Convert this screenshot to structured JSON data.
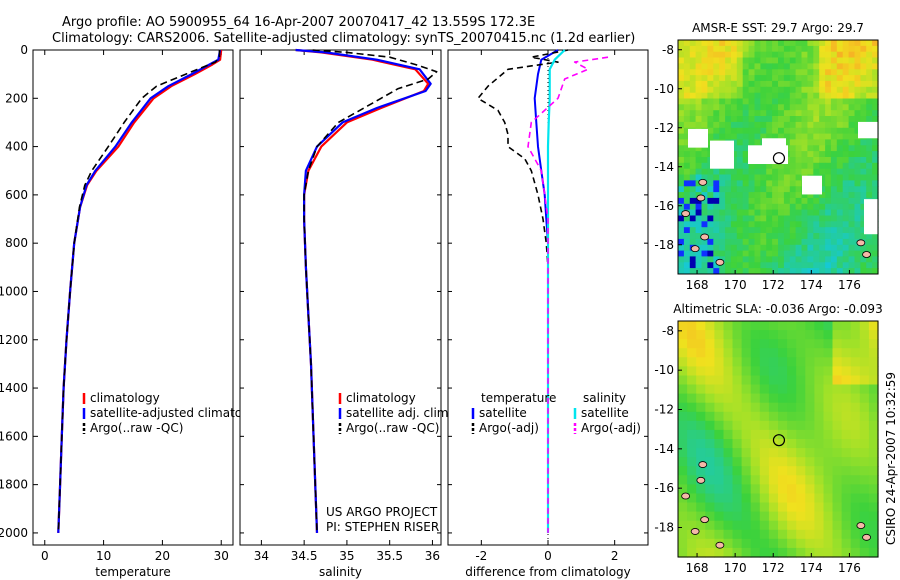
{
  "header": {
    "line1": "Argo profile: AO 5900955_64 16-Apr-2007 20070417_42 13.559S 172.3E",
    "line2": "Climatology: CARS2006. Satellite-adjusted climatology: synTS_20070415.nc (1.2d earlier)"
  },
  "colors": {
    "climatology": "#ff0000",
    "satellite": "#0000ff",
    "argo": "#000000",
    "sal_satellite": "#00e5ee",
    "sal_argo": "#ff00ff"
  },
  "side_note": "CSIRO 24-Apr-2007 10:32:59",
  "chart_data": [
    {
      "type": "line",
      "id": "temperature",
      "xlabel": "temperature",
      "ylabel": "",
      "xlim": [
        -2,
        32
      ],
      "ylim": [
        2050,
        0
      ],
      "xticks": [
        0,
        10,
        20,
        30
      ],
      "yticks": [
        0,
        200,
        400,
        600,
        800,
        1000,
        1200,
        1400,
        1600,
        1800,
        2000
      ],
      "legend": [
        "climatology",
        "satellite-adjusted climatology",
        "Argo(..raw -QC)"
      ],
      "series": [
        {
          "name": "climatology",
          "points": [
            [
              30.0,
              0
            ],
            [
              29.8,
              40
            ],
            [
              28.5,
              60
            ],
            [
              25.5,
              100
            ],
            [
              21.5,
              150
            ],
            [
              18.5,
              200
            ],
            [
              15.2,
              300
            ],
            [
              12.5,
              400
            ],
            [
              8.8,
              500
            ],
            [
              7.2,
              560
            ],
            [
              6.0,
              650
            ],
            [
              5.0,
              800
            ],
            [
              4.3,
              1000
            ],
            [
              3.7,
              1200
            ],
            [
              3.2,
              1400
            ],
            [
              2.9,
              1600
            ],
            [
              2.6,
              1800
            ],
            [
              2.3,
              2000
            ]
          ]
        },
        {
          "name": "satellite",
          "points": [
            [
              29.8,
              0
            ],
            [
              29.5,
              40
            ],
            [
              28.0,
              60
            ],
            [
              25.0,
              100
            ],
            [
              21.0,
              150
            ],
            [
              18.0,
              200
            ],
            [
              14.8,
              300
            ],
            [
              12.0,
              400
            ],
            [
              8.6,
              500
            ],
            [
              7.1,
              560
            ],
            [
              6.0,
              650
            ],
            [
              5.0,
              800
            ],
            [
              4.3,
              1000
            ],
            [
              3.7,
              1200
            ],
            [
              3.2,
              1400
            ],
            [
              2.9,
              1600
            ],
            [
              2.6,
              1800
            ],
            [
              2.3,
              2000
            ]
          ]
        },
        {
          "name": "argo",
          "points": [
            [
              29.7,
              0
            ],
            [
              29.7,
              30
            ],
            [
              29.0,
              50
            ],
            [
              24.0,
              100
            ],
            [
              19.0,
              150
            ],
            [
              16.5,
              200
            ],
            [
              13.5,
              300
            ],
            [
              10.8,
              400
            ],
            [
              8.0,
              500
            ],
            [
              6.8,
              560
            ],
            [
              5.9,
              650
            ],
            [
              5.0,
              800
            ],
            [
              4.3,
              1000
            ],
            [
              3.7,
              1200
            ],
            [
              3.2,
              1400
            ],
            [
              2.9,
              1600
            ],
            [
              2.6,
              1800
            ],
            [
              2.3,
              2000
            ]
          ]
        }
      ]
    },
    {
      "type": "line",
      "id": "salinity",
      "xlabel": "salinity",
      "xlim": [
        33.75,
        36.1
      ],
      "ylim": [
        2050,
        0
      ],
      "xticks": [
        34,
        34.5,
        35,
        35.5,
        36
      ],
      "legend": [
        "climatology",
        "satellite adj. clim.",
        "Argo(..raw -QC)"
      ],
      "annotation": [
        "US ARGO PROJECT",
        "PI: STEPHEN RISER"
      ],
      "series": [
        {
          "name": "climatology",
          "points": [
            [
              34.4,
              0
            ],
            [
              34.7,
              10
            ],
            [
              35.3,
              40
            ],
            [
              35.8,
              80
            ],
            [
              35.95,
              140
            ],
            [
              35.9,
              170
            ],
            [
              35.4,
              240
            ],
            [
              35.0,
              300
            ],
            [
              34.7,
              400
            ],
            [
              34.55,
              500
            ],
            [
              34.5,
              600
            ],
            [
              34.5,
              700
            ],
            [
              34.52,
              900
            ],
            [
              34.55,
              1100
            ],
            [
              34.58,
              1300
            ],
            [
              34.6,
              1500
            ],
            [
              34.62,
              1700
            ],
            [
              34.65,
              2000
            ]
          ]
        },
        {
          "name": "satellite",
          "points": [
            [
              34.4,
              0
            ],
            [
              34.75,
              10
            ],
            [
              35.35,
              40
            ],
            [
              35.85,
              80
            ],
            [
              35.98,
              140
            ],
            [
              35.92,
              170
            ],
            [
              35.35,
              240
            ],
            [
              34.95,
              300
            ],
            [
              34.65,
              400
            ],
            [
              34.52,
              500
            ],
            [
              34.5,
              600
            ],
            [
              34.5,
              700
            ],
            [
              34.52,
              900
            ],
            [
              34.55,
              1100
            ],
            [
              34.58,
              1300
            ],
            [
              34.6,
              1500
            ],
            [
              34.62,
              1700
            ],
            [
              34.65,
              2000
            ]
          ]
        },
        {
          "name": "argo",
          "points": [
            [
              34.6,
              0
            ],
            [
              35.0,
              10
            ],
            [
              35.5,
              30
            ],
            [
              35.8,
              60
            ],
            [
              36.05,
              90
            ],
            [
              35.95,
              120
            ],
            [
              35.6,
              160
            ],
            [
              35.2,
              240
            ],
            [
              34.9,
              300
            ],
            [
              34.65,
              400
            ],
            [
              34.55,
              500
            ],
            [
              34.5,
              600
            ],
            [
              34.5,
              700
            ],
            [
              34.52,
              900
            ],
            [
              34.55,
              1100
            ],
            [
              34.58,
              1300
            ],
            [
              34.6,
              1500
            ],
            [
              34.62,
              1700
            ],
            [
              34.65,
              2000
            ]
          ]
        }
      ]
    },
    {
      "type": "line",
      "id": "difference",
      "xlabel": "difference from climatology",
      "xlim": [
        -3,
        3
      ],
      "ylim": [
        2050,
        0
      ],
      "xticks": [
        -2,
        0,
        2
      ],
      "legend_temperature": [
        "temperature",
        "satellite",
        "Argo(-adj)"
      ],
      "legend_salinity": [
        "salinity",
        "satellite",
        "Argo(-adj)"
      ],
      "series": [
        {
          "name": "temperature satellite",
          "points": [
            [
              0.3,
              0
            ],
            [
              -0.2,
              40
            ],
            [
              -0.3,
              100
            ],
            [
              -0.4,
              200
            ],
            [
              -0.35,
              300
            ],
            [
              -0.3,
              400
            ],
            [
              -0.2,
              500
            ],
            [
              -0.1,
              600
            ],
            [
              -0.05,
              700
            ],
            [
              0,
              800
            ],
            [
              0,
              1000
            ],
            [
              0,
              2000
            ]
          ]
        },
        {
          "name": "temperature Argo(-adj)",
          "points": [
            [
              0.6,
              0
            ],
            [
              -0.5,
              30
            ],
            [
              0.3,
              50
            ],
            [
              -1.2,
              80
            ],
            [
              -1.8,
              150
            ],
            [
              -2.1,
              200
            ],
            [
              -1.5,
              250
            ],
            [
              -1.3,
              300
            ],
            [
              -1.2,
              350
            ],
            [
              -1.2,
              400
            ],
            [
              -0.7,
              450
            ],
            [
              -0.5,
              500
            ],
            [
              -0.3,
              600
            ],
            [
              -0.15,
              700
            ],
            [
              -0.05,
              800
            ],
            [
              0,
              900
            ],
            [
              0,
              2000
            ]
          ]
        },
        {
          "name": "salinity satellite",
          "points": [
            [
              0.5,
              0
            ],
            [
              0.2,
              40
            ],
            [
              0.05,
              80
            ],
            [
              0.05,
              150
            ],
            [
              0.05,
              200
            ],
            [
              0.02,
              300
            ],
            [
              0,
              400
            ],
            [
              0,
              2000
            ]
          ]
        },
        {
          "name": "salinity Argo(-adj)",
          "points": [
            [
              1.8,
              30
            ],
            [
              0.8,
              50
            ],
            [
              1.2,
              80
            ],
            [
              0.5,
              120
            ],
            [
              0.3,
              200
            ],
            [
              -0.5,
              300
            ],
            [
              -0.6,
              400
            ],
            [
              -0.2,
              500
            ],
            [
              -0.1,
              600
            ],
            [
              0,
              700
            ],
            [
              0,
              2000
            ]
          ]
        }
      ]
    },
    {
      "type": "heatmap",
      "id": "sst_map",
      "title": "AMSR-E SST: 29.7 Argo: 29.7",
      "xlim": [
        167,
        177.5
      ],
      "ylim": [
        -19.5,
        -7.5
      ],
      "xticks": [
        168,
        170,
        172,
        174,
        176
      ],
      "yticks": [
        -8,
        -10,
        -12,
        -14,
        -16,
        -18
      ],
      "marker": [
        172.3,
        -13.56
      ]
    },
    {
      "type": "heatmap",
      "id": "sla_map",
      "title": "Altimetric SLA: -0.036 Argo: -0.093",
      "xlim": [
        167,
        177.5
      ],
      "ylim": [
        -19.5,
        -7.5
      ],
      "xticks": [
        168,
        170,
        172,
        174,
        176
      ],
      "yticks": [
        -8,
        -10,
        -12,
        -14,
        -16,
        -18
      ],
      "marker": [
        172.3,
        -13.56
      ]
    }
  ]
}
